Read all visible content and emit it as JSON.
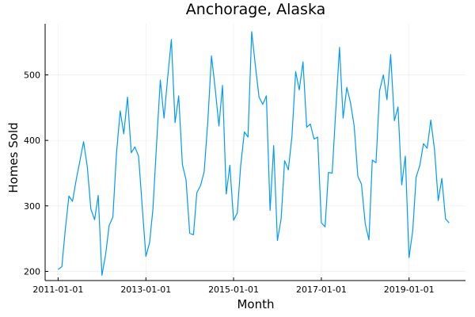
{
  "chart_data": {
    "type": "line",
    "title": "Anchorage, Alaska",
    "xlabel": "Month",
    "ylabel": "Homes Sold",
    "x_start": "2011-01-01",
    "x_ticks": [
      "2011-01-01",
      "2013-01-01",
      "2015-01-01",
      "2017-01-01",
      "2019-01-01"
    ],
    "y_ticks": [
      200,
      300,
      400,
      500
    ],
    "xlim": [
      "2010-09-15",
      "2020-04-15"
    ],
    "ylim": [
      186,
      578
    ],
    "grid": true,
    "legend": "none",
    "colors": {
      "series": "#009AFA"
    },
    "x": [
      "2011-01-01",
      "2011-02-01",
      "2011-03-01",
      "2011-04-01",
      "2011-05-01",
      "2011-06-01",
      "2011-07-01",
      "2011-08-01",
      "2011-09-01",
      "2011-10-01",
      "2011-11-01",
      "2011-12-01",
      "2012-01-01",
      "2012-02-01",
      "2012-03-01",
      "2012-04-01",
      "2012-05-01",
      "2012-06-01",
      "2012-07-01",
      "2012-08-01",
      "2012-09-01",
      "2012-10-01",
      "2012-11-01",
      "2012-12-01",
      "2013-01-01",
      "2013-02-01",
      "2013-03-01",
      "2013-04-01",
      "2013-05-01",
      "2013-06-01",
      "2013-07-01",
      "2013-08-01",
      "2013-09-01",
      "2013-10-01",
      "2013-11-01",
      "2013-12-01",
      "2014-01-01",
      "2014-02-01",
      "2014-03-01",
      "2014-04-01",
      "2014-05-01",
      "2014-06-01",
      "2014-07-01",
      "2014-08-01",
      "2014-09-01",
      "2014-10-01",
      "2014-11-01",
      "2014-12-01",
      "2015-01-01",
      "2015-02-01",
      "2015-03-01",
      "2015-04-01",
      "2015-05-01",
      "2015-06-01",
      "2015-07-01",
      "2015-08-01",
      "2015-09-01",
      "2015-10-01",
      "2015-11-01",
      "2015-12-01",
      "2016-01-01",
      "2016-02-01",
      "2016-03-01",
      "2016-04-01",
      "2016-05-01",
      "2016-06-01",
      "2016-07-01",
      "2016-08-01",
      "2016-09-01",
      "2016-10-01",
      "2016-11-01",
      "2016-12-01",
      "2017-01-01",
      "2017-02-01",
      "2017-03-01",
      "2017-04-01",
      "2017-05-01",
      "2017-06-01",
      "2017-07-01",
      "2017-08-01",
      "2017-09-01",
      "2017-10-01",
      "2017-11-01",
      "2017-12-01",
      "2018-01-01",
      "2018-02-01",
      "2018-03-01",
      "2018-04-01",
      "2018-05-01",
      "2018-06-01",
      "2018-07-01",
      "2018-08-01",
      "2018-09-01",
      "2018-10-01",
      "2018-11-01",
      "2018-12-01",
      "2019-01-01",
      "2019-02-01",
      "2019-03-01",
      "2019-04-01",
      "2019-05-01",
      "2019-06-01",
      "2019-07-01",
      "2019-08-01",
      "2019-09-01",
      "2019-10-01",
      "2019-11-01",
      "2019-12-01"
    ],
    "values": [
      203,
      207,
      262,
      315,
      307,
      340,
      368,
      398,
      360,
      295,
      279,
      316,
      194,
      226,
      270,
      283,
      380,
      445,
      410,
      466,
      381,
      390,
      376,
      300,
      223,
      244,
      296,
      398,
      492,
      434,
      495,
      554,
      427,
      468,
      363,
      340,
      258,
      256,
      320,
      331,
      352,
      430,
      529,
      479,
      422,
      484,
      318,
      362,
      278,
      289,
      361,
      413,
      405,
      566,
      515,
      466,
      455,
      468,
      293,
      392,
      247,
      280,
      369,
      355,
      406,
      505,
      477,
      520,
      420,
      425,
      402,
      405,
      274,
      268,
      351,
      350,
      446,
      542,
      434,
      481,
      457,
      422,
      345,
      333,
      273,
      248,
      370,
      366,
      476,
      500,
      462,
      531,
      430,
      451,
      332,
      376,
      221,
      263,
      344,
      362,
      395,
      388,
      431,
      386,
      308,
      342,
      280,
      274
    ]
  }
}
